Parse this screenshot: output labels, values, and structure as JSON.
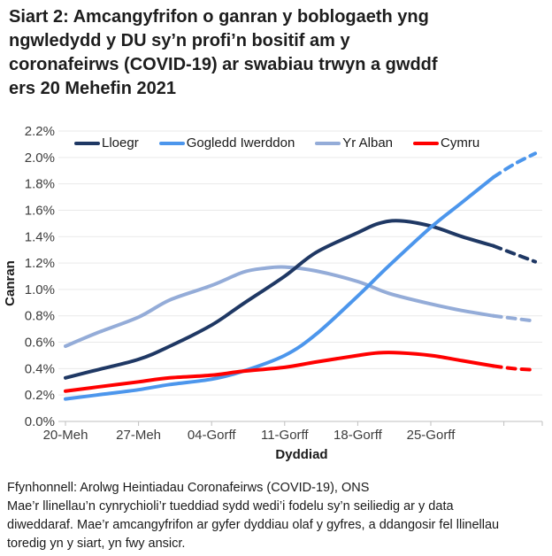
{
  "title_lines": [
    "Siart 2: Amcangyfrifon o ganran y boblogaeth yng",
    "ngwledydd y DU sy’n profi’n bositif am y",
    "coronafeirws (COVID-19) ar swabiau trwyn a gwddf",
    "ers 20 Mehefin 2021"
  ],
  "chart_data": {
    "type": "line",
    "xlabel": "Dyddiad",
    "ylabel": "Canran",
    "ylim": [
      0,
      2.2
    ],
    "ytick_step": 0.2,
    "ytick_suffix": "%",
    "x_domain_days_since_20_Mehefin": [
      0,
      45.5
    ],
    "grid": "horizontal",
    "legend_position": "top-inside",
    "xticks": [
      {
        "day": 0,
        "label": "20-Meh"
      },
      {
        "day": 7,
        "label": "27-Meh"
      },
      {
        "day": 14,
        "label": "04-Gorff"
      },
      {
        "day": 21,
        "label": "11-Gorff"
      },
      {
        "day": 28,
        "label": "18-Gorff"
      },
      {
        "day": 35,
        "label": "25-Gorff"
      },
      {
        "day": 42,
        "label": ""
      }
    ],
    "dashed_tail_meaning": "llinellau toredig = amcangyfrifon mwy ansicr (dyddiau olaf y gyfres)",
    "series": [
      {
        "name": "Lloegr",
        "color": "#1F3864",
        "days": [
          0,
          3,
          7,
          10,
          14,
          17,
          21,
          24,
          28,
          30,
          32,
          35,
          38,
          41,
          43,
          45
        ],
        "values": [
          0.33,
          0.39,
          0.47,
          0.57,
          0.73,
          0.89,
          1.1,
          1.28,
          1.43,
          1.5,
          1.52,
          1.48,
          1.4,
          1.33,
          1.27,
          1.21
        ],
        "dashed_from_day": 41
      },
      {
        "name": "Gogledd Iwerddon",
        "color": "#4C96EC",
        "days": [
          0,
          3,
          7,
          10,
          14,
          17,
          21,
          24,
          28,
          31,
          35,
          38,
          41,
          43,
          45
        ],
        "values": [
          0.17,
          0.2,
          0.24,
          0.28,
          0.32,
          0.38,
          0.5,
          0.66,
          0.95,
          1.18,
          1.47,
          1.66,
          1.85,
          1.95,
          2.03
        ],
        "dashed_from_day": 41
      },
      {
        "name": "Yr Alban",
        "color": "#94ACD8",
        "days": [
          0,
          3,
          7,
          10,
          14,
          17,
          19,
          21,
          24,
          28,
          31,
          35,
          38,
          41,
          43,
          45
        ],
        "values": [
          0.57,
          0.67,
          0.79,
          0.92,
          1.03,
          1.13,
          1.16,
          1.17,
          1.14,
          1.06,
          0.97,
          0.89,
          0.84,
          0.8,
          0.78,
          0.76
        ],
        "dashed_from_day": 41
      },
      {
        "name": "Cymru",
        "color": "#FF0000",
        "days": [
          0,
          3,
          7,
          10,
          14,
          17,
          21,
          24,
          28,
          30,
          32,
          35,
          38,
          41,
          43,
          45
        ],
        "values": [
          0.23,
          0.26,
          0.3,
          0.33,
          0.35,
          0.38,
          0.41,
          0.45,
          0.5,
          0.52,
          0.52,
          0.5,
          0.46,
          0.42,
          0.4,
          0.39
        ],
        "dashed_from_day": 41
      }
    ],
    "colors": {
      "grid": "#e9e9e9",
      "axis": "#bfbfbf",
      "tick_text": "#3c3c3c",
      "axis_title_text": "#1a1a1a"
    }
  },
  "footer": {
    "source": "Ffynhonnell: Arolwg Heintiadau Coronafeirws (COVID-19), ONS",
    "note_lines": [
      "Mae’r llinellau’n cynrychioli’r tueddiad sydd wedi’i fodelu sy’n seiliedig ar y data",
      "diweddaraf. Mae’r amcangyfrifon ar gyfer dyddiau olaf y gyfres, a ddangosir fel llinellau",
      "toredig yn y siart, yn fwy ansicr."
    ]
  }
}
